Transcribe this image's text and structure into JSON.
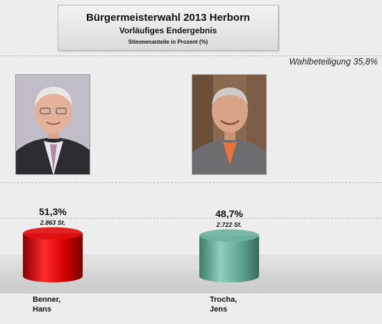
{
  "header": {
    "title": "Bürgermeisterwahl 2013 Herborn",
    "subtitle": "Vorläufiges Endergebnis",
    "caption": "Stimmenanteile in Prozent (%)"
  },
  "turnout": "Wahlbeteiligung 35,8%",
  "chart_data": {
    "type": "bar",
    "title": "Bürgermeisterwahl 2013 Herborn",
    "categories": [
      "Benner, Hans",
      "Trocha, Jens"
    ],
    "values": [
      51.3,
      48.7
    ],
    "value_labels": [
      "51,3%",
      "48,7%"
    ],
    "vote_labels": [
      "2.863 St.",
      "2.722 St."
    ],
    "name_lines": [
      [
        "Benner,",
        "Hans"
      ],
      [
        "Trocha,",
        "Jens"
      ]
    ],
    "colors": [
      "#e01010",
      "#6fb3a0"
    ],
    "ylim": [
      0,
      100
    ],
    "grid": false,
    "legend": "none"
  }
}
